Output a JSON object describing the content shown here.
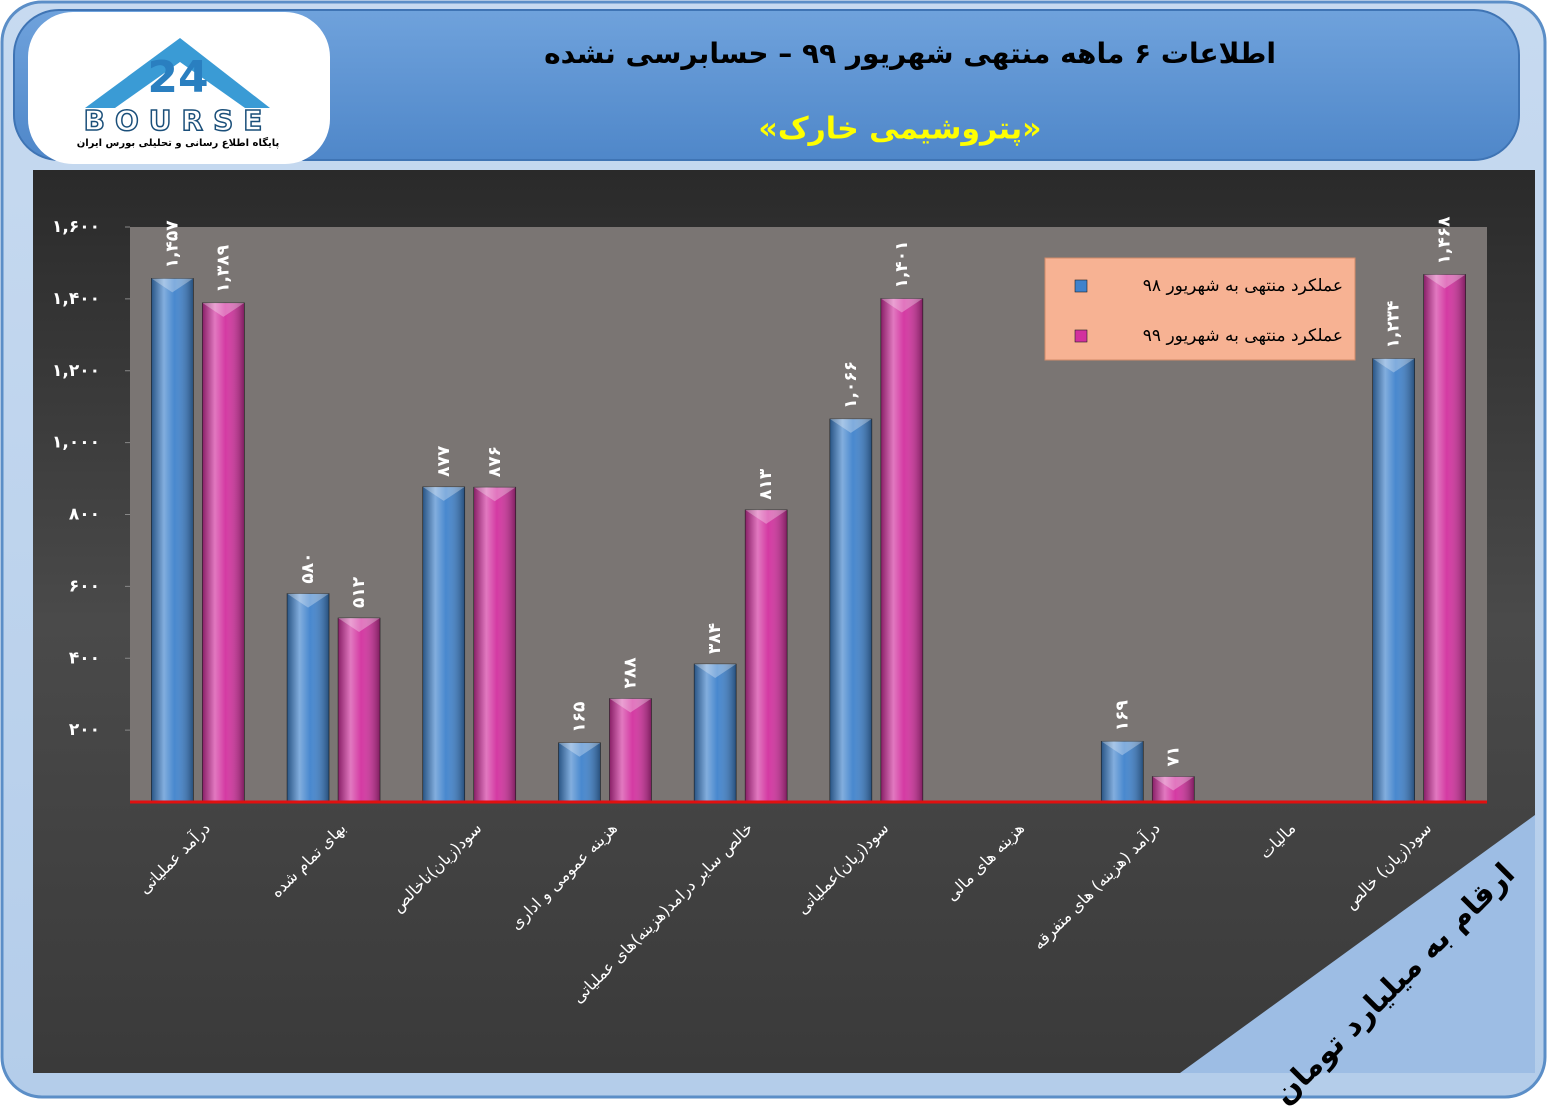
{
  "logo": {
    "mark": "24",
    "name": "BOURSE",
    "tagline": "پایگاه اطلاع رسانی و تحلیلی بورس ایران"
  },
  "chart_data": {
    "type": "bar",
    "title": "اطلاعات ۶ ماهه منتهی شهریور ۹۹ – حسابرسی نشده",
    "subtitle": "«پتروشیمی خارک»",
    "unit_note": "ارقام به میلیارد تومان",
    "categories": [
      "درآمد عملیاتی",
      "بهای تمام شده",
      "سود(زیان)ناخالص",
      "هزینه عمومی و اداری",
      "خالص سایر درامد(هزینه)های عملیاتی",
      "سود(زیان)عملیاتی",
      "هزینه های مالی",
      "درآمد (هزینه) های متفرقه",
      "مالیات",
      "سود(زیان) خالص"
    ],
    "series": [
      {
        "name": "عملکرد منتهی به شهریور ۹۸",
        "color": "#3f82cc",
        "values": [
          1457,
          580,
          877,
          165,
          384,
          1066,
          null,
          169,
          null,
          1234
        ],
        "value_labels": [
          "۱,۴۵۷",
          "۵۸۰",
          "۸۷۷",
          "۱۶۵",
          "۳۸۴",
          "۱,۰۶۶",
          null,
          "۱۶۹",
          null,
          "۱,۲۳۴"
        ]
      },
      {
        "name": "عملکرد منتهی به شهریور ۹۹",
        "color": "#d2309e",
        "values": [
          1389,
          512,
          876,
          288,
          813,
          1401,
          null,
          71,
          null,
          1468
        ],
        "value_labels": [
          "۱,۳۸۹",
          "۵۱۲",
          "۸۷۶",
          "۲۸۸",
          "۸۱۳",
          "۱,۴۰۱",
          null,
          "۷۱",
          null,
          "۱,۴۶۸"
        ]
      }
    ],
    "ylim": [
      0,
      1600
    ],
    "yticks": [
      {
        "value": 200,
        "label": "۲۰۰"
      },
      {
        "value": 400,
        "label": "۴۰۰"
      },
      {
        "value": 600,
        "label": "۶۰۰"
      },
      {
        "value": 800,
        "label": "۸۰۰"
      },
      {
        "value": 1000,
        "label": "۱,۰۰۰"
      },
      {
        "value": 1200,
        "label": "۱,۲۰۰"
      },
      {
        "value": 1400,
        "label": "۱,۴۰۰"
      },
      {
        "value": 1600,
        "label": "۱,۶۰۰"
      }
    ],
    "legend_position": "upper right",
    "baseline_color": "#e01010"
  }
}
